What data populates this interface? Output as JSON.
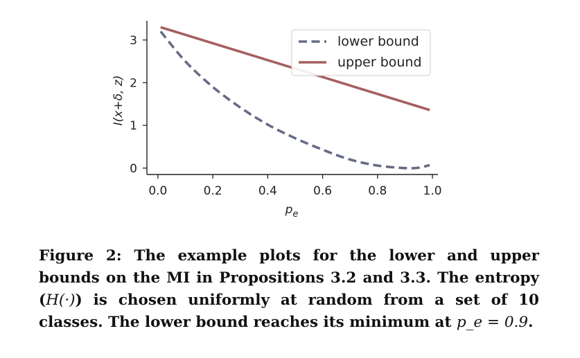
{
  "chart_data": {
    "type": "line",
    "xlabel": "p_e",
    "ylabel": "I(x+δ, z)",
    "xlim": [
      -0.04,
      1.02
    ],
    "ylim": [
      -0.15,
      3.45
    ],
    "xticks": [
      0.0,
      0.2,
      0.4,
      0.6,
      0.8,
      1.0
    ],
    "xtick_labels": [
      "0.0",
      "0.2",
      "0.4",
      "0.6",
      "0.8",
      "1.0"
    ],
    "yticks": [
      0,
      1,
      2,
      3
    ],
    "ytick_labels": [
      "0",
      "1",
      "2",
      "3"
    ],
    "grid": false,
    "legend_position": "top-right",
    "series": [
      {
        "name": "lower bound",
        "style": "dashed",
        "color": "#666b85",
        "x": [
          0.01,
          0.1,
          0.2,
          0.3,
          0.4,
          0.5,
          0.6,
          0.7,
          0.8,
          0.9,
          0.95,
          0.99
        ],
        "y": [
          3.2,
          2.5,
          1.9,
          1.42,
          1.02,
          0.7,
          0.43,
          0.2,
          0.06,
          0.0,
          0.01,
          0.07
        ]
      },
      {
        "name": "upper bound",
        "style": "solid",
        "color": "#a65f5f",
        "x": [
          0.01,
          0.99
        ],
        "y": [
          3.3,
          1.36
        ]
      }
    ]
  },
  "caption": {
    "prefix": "Figure 2: The example plots for the lower and upper bounds on the MI in Propositions 3.2 and 3.3. The entropy (",
    "math1": "H(·)",
    "middle": ") is chosen uniformly at random from a set of 10 classes. The lower bound reaches its minimum at ",
    "math2": "p_e = 0.9",
    "suffix": "."
  }
}
